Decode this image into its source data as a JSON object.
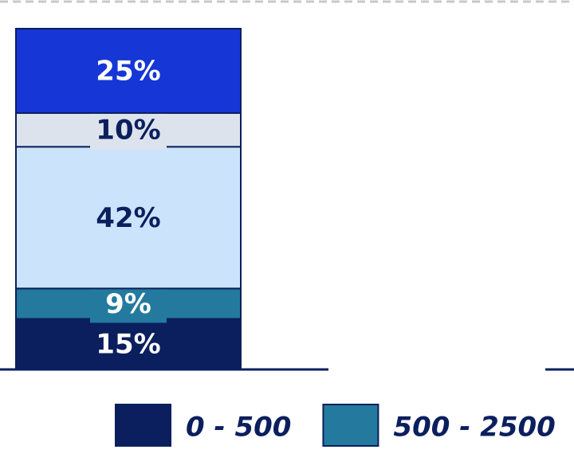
{
  "chart_data": {
    "type": "stacked-bar",
    "categories": [
      null
    ],
    "series": [
      {
        "name": "0 - 500",
        "color": "#0b1f5e",
        "values": [
          15
        ],
        "value_labels": [
          "15%"
        ]
      },
      {
        "name": "500 - 2500",
        "color": "#237a9e",
        "values": [
          9
        ],
        "value_labels": [
          "9%"
        ]
      },
      {
        "color": "#cce4fb",
        "values": [
          42
        ],
        "value_labels": [
          "42%"
        ]
      },
      {
        "color": "#dde3ec",
        "values": [
          10
        ],
        "value_labels": [
          "10%"
        ]
      },
      {
        "color": "#1636d6",
        "values": [
          25
        ],
        "value_labels": [
          "25%"
        ]
      }
    ]
  }
}
